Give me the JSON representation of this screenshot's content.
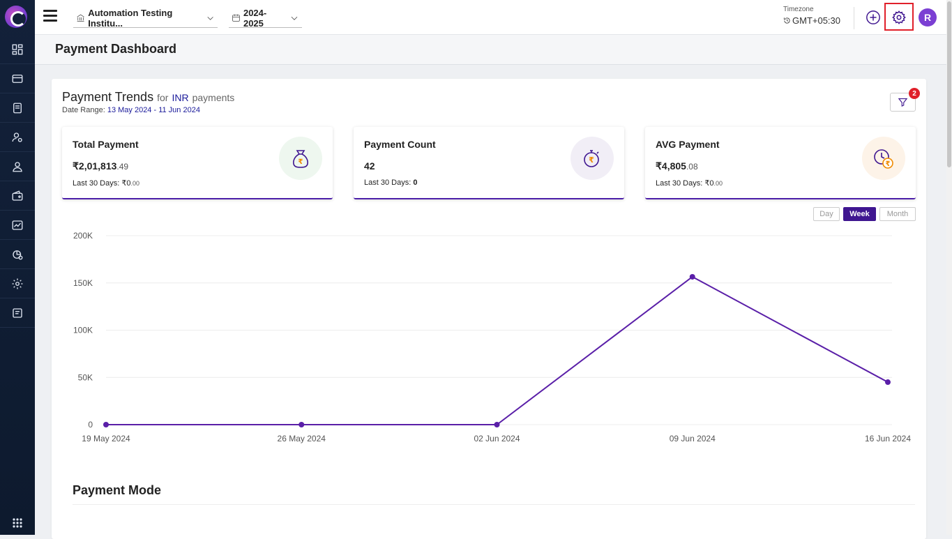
{
  "app": {
    "sidebar": {
      "items": [
        "dashboard-icon",
        "payment-card-icon",
        "invoice-icon",
        "user-settings-icon",
        "student-icon",
        "wallet-icon",
        "reports-icon",
        "analytics-icon",
        "settings-icon",
        "document-icon"
      ]
    },
    "institute": "Automation Testing Institu...",
    "academic_year": "2024-2025",
    "timezone_label": "Timezone",
    "timezone_value": "GMT+05:30",
    "avatar_initial": "R"
  },
  "page": {
    "title": "Payment Dashboard"
  },
  "trends": {
    "title": "Payment Trends",
    "for_text": "for",
    "currency": "INR",
    "payments_text": "payments",
    "date_range_label": "Date Range:",
    "date_range": "13 May 2024 - 11 Jun 2024",
    "filter_badge": "2"
  },
  "stats": [
    {
      "label": "Total Payment",
      "symbol": "₹",
      "value": "2,01,813",
      "decimal": ".49",
      "last_label": "Last 30 Days:",
      "last_value": "₹0",
      "last_decimal": ".00"
    },
    {
      "label": "Payment Count",
      "symbol": "",
      "value": "42",
      "decimal": "",
      "last_label": "Last 30 Days:",
      "last_value": "0",
      "last_decimal": ""
    },
    {
      "label": "AVG Payment",
      "symbol": "₹",
      "value": "4,805",
      "decimal": ".08",
      "last_label": "Last 30 Days:",
      "last_value": "₹0",
      "last_decimal": ".00"
    }
  ],
  "toggles": {
    "day": "Day",
    "week": "Week",
    "month": "Month",
    "active": "Week"
  },
  "chart_data": {
    "type": "line",
    "categories": [
      "19 May 2024",
      "26 May 2024",
      "02 Jun 2024",
      "09 Jun 2024",
      "16 Jun 2024"
    ],
    "values": [
      0,
      0,
      0,
      156500,
      45000
    ],
    "yticks": [
      "0",
      "50K",
      "100K",
      "150K",
      "200K"
    ],
    "ylim": [
      0,
      200000
    ],
    "grid": true,
    "color": "#5a1fa8"
  },
  "sections": {
    "payment_mode": "Payment Mode"
  },
  "colors": {
    "accent": "#4b1ea8",
    "sidebar": "#13213a",
    "alert": "#e0202a",
    "avatar": "#7b3fd3"
  }
}
